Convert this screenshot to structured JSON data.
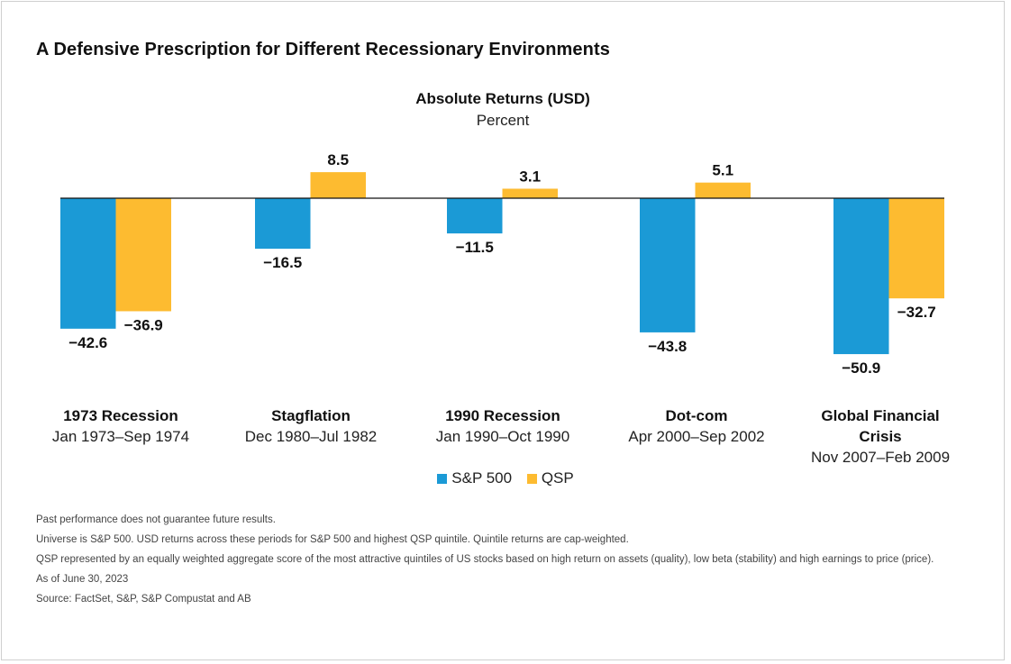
{
  "title": "A Defensive Prescription for Different Recessionary Environments",
  "chart_subtitle": "Absolute Returns (USD)",
  "chart_unit": "Percent",
  "colors": {
    "sp500": "#1b9ad6",
    "qsp": "#fdbb30",
    "axis": "#111111"
  },
  "chart_data": {
    "type": "bar",
    "title": "Absolute Returns (USD)",
    "subtitle": "Percent",
    "categories": [
      {
        "name": [
          "1973 Recession"
        ],
        "dates": "Jan 1973–Sep 1974"
      },
      {
        "name": [
          "Stagflation"
        ],
        "dates": "Dec 1980–Jul 1982"
      },
      {
        "name": [
          "1990 Recession"
        ],
        "dates": "Jan 1990–Oct 1990"
      },
      {
        "name": [
          "Dot-com"
        ],
        "dates": "Apr 2000–Sep 2002"
      },
      {
        "name": [
          "Global Financial",
          "Crisis"
        ],
        "dates": "Nov 2007–Feb 2009"
      }
    ],
    "series": [
      {
        "name": "S&P 500",
        "values": [
          -42.6,
          -16.5,
          -11.5,
          -43.8,
          -50.9
        ]
      },
      {
        "name": "QSP",
        "values": [
          -36.9,
          8.5,
          3.1,
          5.1,
          -32.7
        ]
      }
    ],
    "legend_position": "bottom-center",
    "grid": false
  },
  "notes": [
    "Past performance does not guarantee future results.",
    "Universe is S&P 500. USD returns across these periods for S&P 500 and highest QSP quintile. Quintile returns are cap-weighted.",
    "QSP represented by an equally weighted aggregate score of the most attractive quintiles of US stocks based on high return on assets (quality), low beta (stability) and high earnings to price (price).",
    "As of June 30, 2023",
    "Source: FactSet, S&P, S&P Compustat and AB"
  ]
}
